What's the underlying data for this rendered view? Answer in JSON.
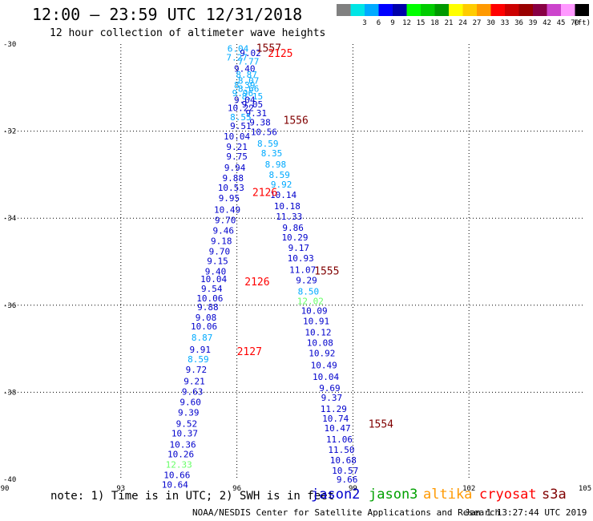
{
  "header": {
    "title": "12:00 – 23:59 UTC 12/31/2018",
    "subtitle": "12 hour collection of altimeter wave heights"
  },
  "legend": {
    "unit": "(ft)",
    "swatches": [
      {
        "color": "#808080",
        "label": ""
      },
      {
        "color": "#00e5e5",
        "label": "3"
      },
      {
        "color": "#00aaff",
        "label": "6"
      },
      {
        "color": "#0000ff",
        "label": "9"
      },
      {
        "color": "#0000aa",
        "label": "12"
      },
      {
        "color": "#00ff00",
        "label": "15"
      },
      {
        "color": "#00cc00",
        "label": "18"
      },
      {
        "color": "#009900",
        "label": "21"
      },
      {
        "color": "#ffff00",
        "label": "24"
      },
      {
        "color": "#ffcc00",
        "label": "27"
      },
      {
        "color": "#ff9900",
        "label": "30"
      },
      {
        "color": "#ff0000",
        "label": "33"
      },
      {
        "color": "#cc0000",
        "label": "36"
      },
      {
        "color": "#990000",
        "label": "39"
      },
      {
        "color": "#880044",
        "label": "42"
      },
      {
        "color": "#cc44cc",
        "label": "45"
      },
      {
        "color": "#ff99ff",
        "label": "70"
      },
      {
        "color": "#000000",
        "label": ""
      }
    ]
  },
  "footer": {
    "note": "note: 1) Time is in UTC; 2) SWH is in feet",
    "credit": "NOAA/NESDIS Center for Satellite Applications and Research",
    "timestamp": "Jan  1 13:27:44 UTC 2019",
    "satellites": [
      {
        "name": "jason2",
        "color": "#0000cc"
      },
      {
        "name": "jason3",
        "color": "#00a000"
      },
      {
        "name": "altika",
        "color": "#ff9900"
      },
      {
        "name": "cryosat",
        "color": "#ff0000"
      },
      {
        "name": "s3a",
        "color": "#800000"
      }
    ]
  },
  "chart_data": {
    "type": "scatter",
    "title": "12:00 – 23:59 UTC 12/31/2018",
    "xlim": [
      90,
      105
    ],
    "ylim": [
      -40,
      -30
    ],
    "xticks": [
      "90",
      "93",
      "96",
      "99",
      "102",
      "105"
    ],
    "yticks": [
      "-30",
      "-32",
      "-34",
      "-36",
      "-38",
      "-40"
    ],
    "grid": true,
    "tracks": [
      {
        "label": "1557",
        "color": "#800000",
        "x": 96.5,
        "y": -30.08
      },
      {
        "label": "2125",
        "color": "#ff0000",
        "x": 96.8,
        "y": -30.2
      },
      {
        "label": "1556",
        "color": "#800000",
        "x": 97.2,
        "y": -31.74
      },
      {
        "label": "2126",
        "color": "#ff0000",
        "x": 96.4,
        "y": -33.4
      },
      {
        "label": "1555",
        "color": "#800000",
        "x": 98.0,
        "y": -35.2
      },
      {
        "label": "2126",
        "color": "#ff0000",
        "x": 96.2,
        "y": -35.45
      },
      {
        "label": "2127",
        "color": "#ff0000",
        "x": 96.0,
        "y": -37.05
      },
      {
        "label": "1554",
        "color": "#800000",
        "x": 99.4,
        "y": -38.72
      }
    ],
    "points": [
      {
        "v": "6.04",
        "x": 96.03,
        "y": -30.1,
        "c": "#00aaff"
      },
      {
        "v": "9.02",
        "x": 96.35,
        "y": -30.2,
        "c": "#0000cc"
      },
      {
        "v": "7.27",
        "x": 96.0,
        "y": -30.3,
        "c": "#00aaff"
      },
      {
        "v": "7.77",
        "x": 96.3,
        "y": -30.4,
        "c": "#00aaff"
      },
      {
        "v": "9.40",
        "x": 96.2,
        "y": -30.56,
        "c": "#0000cc"
      },
      {
        "v": "8.87",
        "x": 96.25,
        "y": -30.7,
        "c": "#00aaff"
      },
      {
        "v": "8.07",
        "x": 96.3,
        "y": -30.84,
        "c": "#00aaff"
      },
      {
        "v": "8.39",
        "x": 96.2,
        "y": -30.94,
        "c": "#00aaff"
      },
      {
        "v": "8.66",
        "x": 96.3,
        "y": -31.02,
        "c": "#00aaff"
      },
      {
        "v": "9.96",
        "x": 96.15,
        "y": -31.12,
        "c": "#00aaff"
      },
      {
        "v": "8.15",
        "x": 96.4,
        "y": -31.2,
        "c": "#00aaff"
      },
      {
        "v": "9.04",
        "x": 96.2,
        "y": -31.28,
        "c": "#0000cc"
      },
      {
        "v": "9.05",
        "x": 96.4,
        "y": -31.38,
        "c": "#0000cc"
      },
      {
        "v": "10.22",
        "x": 96.1,
        "y": -31.46,
        "c": "#0000cc"
      },
      {
        "v": "9.31",
        "x": 96.5,
        "y": -31.58,
        "c": "#0000cc"
      },
      {
        "v": "8.55",
        "x": 96.1,
        "y": -31.68,
        "c": "#00aaff"
      },
      {
        "v": "9.38",
        "x": 96.6,
        "y": -31.8,
        "c": "#0000cc"
      },
      {
        "v": "9.51",
        "x": 96.1,
        "y": -31.88,
        "c": "#0000cc"
      },
      {
        "v": "10.56",
        "x": 96.7,
        "y": -32.02,
        "c": "#0000cc"
      },
      {
        "v": "10.04",
        "x": 96.0,
        "y": -32.12,
        "c": "#0000cc"
      },
      {
        "v": "8.59",
        "x": 96.8,
        "y": -32.28,
        "c": "#00aaff"
      },
      {
        "v": "9.21",
        "x": 96.0,
        "y": -32.36,
        "c": "#0000cc"
      },
      {
        "v": "8.35",
        "x": 96.9,
        "y": -32.5,
        "c": "#00aaff"
      },
      {
        "v": "9.75",
        "x": 96.0,
        "y": -32.58,
        "c": "#0000cc"
      },
      {
        "v": "8.98",
        "x": 97.0,
        "y": -32.76,
        "c": "#00aaff"
      },
      {
        "v": "9.94",
        "x": 95.95,
        "y": -32.84,
        "c": "#0000cc"
      },
      {
        "v": "8.59",
        "x": 97.1,
        "y": -33.0,
        "c": "#00aaff"
      },
      {
        "v": "9.88",
        "x": 95.9,
        "y": -33.08,
        "c": "#0000cc"
      },
      {
        "v": "9.92",
        "x": 97.15,
        "y": -33.22,
        "c": "#00aaff"
      },
      {
        "v": "10.53",
        "x": 95.85,
        "y": -33.3,
        "c": "#0000cc"
      },
      {
        "v": "10.14",
        "x": 97.2,
        "y": -33.46,
        "c": "#0000cc"
      },
      {
        "v": "9.95",
        "x": 95.8,
        "y": -33.54,
        "c": "#0000cc"
      },
      {
        "v": "10.18",
        "x": 97.3,
        "y": -33.72,
        "c": "#0000cc"
      },
      {
        "v": "10.49",
        "x": 95.75,
        "y": -33.8,
        "c": "#0000cc"
      },
      {
        "v": "11.33",
        "x": 97.35,
        "y": -33.96,
        "c": "#0000cc"
      },
      {
        "v": "9.70",
        "x": 95.7,
        "y": -34.04,
        "c": "#0000cc"
      },
      {
        "v": "9.86",
        "x": 97.45,
        "y": -34.22,
        "c": "#0000cc"
      },
      {
        "v": "9.46",
        "x": 95.65,
        "y": -34.28,
        "c": "#0000cc"
      },
      {
        "v": "10.29",
        "x": 97.5,
        "y": -34.44,
        "c": "#0000cc"
      },
      {
        "v": "9.18",
        "x": 95.6,
        "y": -34.52,
        "c": "#0000cc"
      },
      {
        "v": "9.17",
        "x": 97.6,
        "y": -34.68,
        "c": "#0000cc"
      },
      {
        "v": "9.70",
        "x": 95.55,
        "y": -34.76,
        "c": "#0000cc"
      },
      {
        "v": "10.93",
        "x": 97.65,
        "y": -34.92,
        "c": "#0000cc"
      },
      {
        "v": "9.15",
        "x": 95.5,
        "y": -34.98,
        "c": "#0000cc"
      },
      {
        "v": "11.07",
        "x": 97.7,
        "y": -35.18,
        "c": "#0000cc"
      },
      {
        "v": "9.40",
        "x": 95.45,
        "y": -35.22,
        "c": "#0000cc"
      },
      {
        "v": "10.04",
        "x": 95.4,
        "y": -35.4,
        "c": "#0000cc"
      },
      {
        "v": "9.29",
        "x": 97.8,
        "y": -35.42,
        "c": "#0000cc"
      },
      {
        "v": "9.54",
        "x": 95.35,
        "y": -35.62,
        "c": "#0000cc"
      },
      {
        "v": "8.50",
        "x": 97.85,
        "y": -35.68,
        "c": "#00aaff"
      },
      {
        "v": "10.06",
        "x": 95.3,
        "y": -35.84,
        "c": "#0000cc"
      },
      {
        "v": "12.02",
        "x": 97.9,
        "y": -35.9,
        "c": "#66ff66"
      },
      {
        "v": "9.88",
        "x": 95.25,
        "y": -36.04,
        "c": "#0000cc"
      },
      {
        "v": "10.09",
        "x": 98.0,
        "y": -36.12,
        "c": "#0000cc"
      },
      {
        "v": "9.08",
        "x": 95.2,
        "y": -36.28,
        "c": "#0000cc"
      },
      {
        "v": "10.91",
        "x": 98.05,
        "y": -36.36,
        "c": "#0000cc"
      },
      {
        "v": "10.06",
        "x": 95.15,
        "y": -36.48,
        "c": "#0000cc"
      },
      {
        "v": "10.12",
        "x": 98.1,
        "y": -36.62,
        "c": "#0000cc"
      },
      {
        "v": "8.87",
        "x": 95.1,
        "y": -36.74,
        "c": "#00aaff"
      },
      {
        "v": "10.08",
        "x": 98.15,
        "y": -36.86,
        "c": "#0000cc"
      },
      {
        "v": "9.91",
        "x": 95.05,
        "y": -37.02,
        "c": "#0000cc"
      },
      {
        "v": "10.92",
        "x": 98.2,
        "y": -37.1,
        "c": "#0000cc"
      },
      {
        "v": "8.59",
        "x": 95.0,
        "y": -37.24,
        "c": "#00aaff"
      },
      {
        "v": "10.49",
        "x": 98.25,
        "y": -37.38,
        "c": "#0000cc"
      },
      {
        "v": "9.72",
        "x": 94.95,
        "y": -37.48,
        "c": "#0000cc"
      },
      {
        "v": "10.04",
        "x": 98.3,
        "y": -37.64,
        "c": "#0000cc"
      },
      {
        "v": "9.21",
        "x": 94.9,
        "y": -37.74,
        "c": "#0000cc"
      },
      {
        "v": "9.69",
        "x": 98.4,
        "y": -37.9,
        "c": "#0000cc"
      },
      {
        "v": "9.63",
        "x": 94.85,
        "y": -37.98,
        "c": "#0000cc"
      },
      {
        "v": "9.37",
        "x": 98.45,
        "y": -38.12,
        "c": "#0000cc"
      },
      {
        "v": "9.60",
        "x": 94.8,
        "y": -38.22,
        "c": "#0000cc"
      },
      {
        "v": "11.29",
        "x": 98.5,
        "y": -38.38,
        "c": "#0000cc"
      },
      {
        "v": "9.39",
        "x": 94.75,
        "y": -38.46,
        "c": "#0000cc"
      },
      {
        "v": "10.74",
        "x": 98.55,
        "y": -38.6,
        "c": "#0000cc"
      },
      {
        "v": "9.52",
        "x": 94.7,
        "y": -38.72,
        "c": "#0000cc"
      },
      {
        "v": "10.47",
        "x": 98.6,
        "y": -38.82,
        "c": "#0000cc"
      },
      {
        "v": "10.37",
        "x": 94.65,
        "y": -38.94,
        "c": "#0000cc"
      },
      {
        "v": "11.06",
        "x": 98.65,
        "y": -39.08,
        "c": "#0000cc"
      },
      {
        "v": "10.36",
        "x": 94.6,
        "y": -39.2,
        "c": "#0000cc"
      },
      {
        "v": "11.50",
        "x": 98.7,
        "y": -39.32,
        "c": "#0000cc"
      },
      {
        "v": "10.26",
        "x": 94.55,
        "y": -39.42,
        "c": "#0000cc"
      },
      {
        "v": "10.68",
        "x": 98.75,
        "y": -39.56,
        "c": "#0000cc"
      },
      {
        "v": "12.33",
        "x": 94.5,
        "y": -39.66,
        "c": "#66ff66"
      },
      {
        "v": "10.57",
        "x": 98.8,
        "y": -39.8,
        "c": "#0000cc"
      },
      {
        "v": "10.66",
        "x": 94.45,
        "y": -39.9,
        "c": "#0000cc"
      },
      {
        "v": "9.66",
        "x": 98.85,
        "y": -40.0,
        "c": "#0000cc"
      },
      {
        "v": "10.64",
        "x": 94.4,
        "y": -40.12,
        "c": "#0000cc"
      }
    ]
  }
}
